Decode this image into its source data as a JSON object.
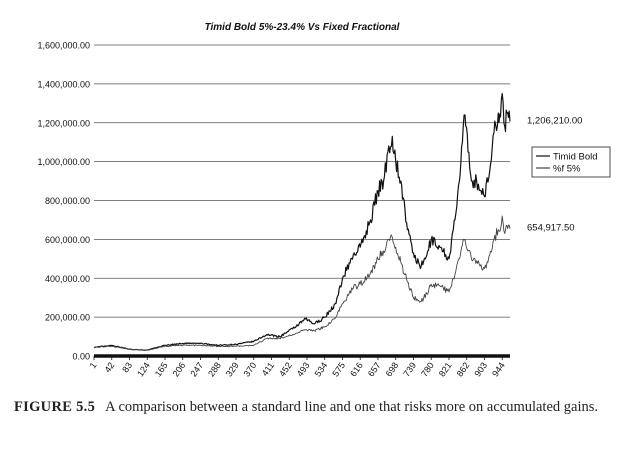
{
  "chart_data": {
    "type": "line",
    "title": "Timid Bold 5%-23.4% Vs Fixed Fractional",
    "xlabel": "",
    "ylabel": "",
    "ylim": [
      0,
      1600000
    ],
    "xlim": [
      1,
      962
    ],
    "yticks": [
      "0.00",
      "200,000.00",
      "400,000.00",
      "600,000.00",
      "800,000.00",
      "1,000,000.00",
      "1,200,000.00",
      "1,400,000.00",
      "1,600,000.00"
    ],
    "ytick_values": [
      0,
      200000,
      400000,
      600000,
      800000,
      1000000,
      1200000,
      1400000,
      1600000
    ],
    "xticks": [
      "1",
      "42",
      "83",
      "124",
      "165",
      "206",
      "247",
      "288",
      "329",
      "370",
      "411",
      "452",
      "493",
      "534",
      "575",
      "616",
      "657",
      "698",
      "739",
      "780",
      "821",
      "862",
      "903",
      "944"
    ],
    "xtick_values": [
      1,
      42,
      83,
      124,
      165,
      206,
      247,
      288,
      329,
      370,
      411,
      452,
      493,
      534,
      575,
      616,
      657,
      698,
      739,
      780,
      821,
      862,
      903,
      944
    ],
    "grid": "horizontal",
    "legend": "right",
    "series": [
      {
        "name": "Timid Bold",
        "color": "#111111",
        "x": [
          1,
          42,
          83,
          124,
          165,
          206,
          247,
          288,
          329,
          370,
          400,
          430,
          460,
          490,
          510,
          534,
          560,
          575,
          600,
          616,
          640,
          657,
          670,
          680,
          690,
          698,
          710,
          725,
          739,
          755,
          770,
          780,
          800,
          821,
          835,
          845,
          852,
          858,
          865,
          875,
          885,
          895,
          903,
          915,
          925,
          935,
          940,
          944,
          950,
          955,
          962
        ],
        "values": [
          45000,
          55000,
          35000,
          30000,
          55000,
          65000,
          65000,
          55000,
          60000,
          75000,
          110000,
          100000,
          140000,
          190000,
          165000,
          200000,
          270000,
          400000,
          520000,
          560000,
          700000,
          850000,
          900000,
          1050000,
          1130000,
          1000000,
          900000,
          650000,
          530000,
          450000,
          520000,
          600000,
          560000,
          500000,
          700000,
          900000,
          1100000,
          1240000,
          1050000,
          900000,
          900000,
          850000,
          820000,
          950000,
          1150000,
          1250000,
          1230000,
          1350000,
          1180000,
          1250000,
          1206210
        ]
      },
      {
        "name": "%f 5%",
        "color": "#444444",
        "x": [
          1,
          42,
          83,
          124,
          165,
          206,
          247,
          288,
          329,
          370,
          400,
          430,
          460,
          490,
          510,
          534,
          560,
          575,
          600,
          616,
          640,
          657,
          670,
          680,
          690,
          698,
          710,
          725,
          739,
          755,
          770,
          780,
          800,
          821,
          835,
          845,
          852,
          858,
          865,
          875,
          885,
          895,
          903,
          915,
          925,
          935,
          940,
          944,
          950,
          955,
          962
        ],
        "values": [
          45000,
          50000,
          35000,
          30000,
          50000,
          55000,
          55000,
          50000,
          50000,
          55000,
          90000,
          90000,
          110000,
          135000,
          130000,
          150000,
          200000,
          270000,
          350000,
          370000,
          430000,
          500000,
          540000,
          600000,
          610000,
          560000,
          480000,
          380000,
          300000,
          280000,
          320000,
          370000,
          360000,
          330000,
          420000,
          500000,
          570000,
          600000,
          540000,
          490000,
          490000,
          470000,
          450000,
          520000,
          600000,
          650000,
          650000,
          720000,
          630000,
          670000,
          654917.5
        ]
      }
    ],
    "annotations": [
      {
        "text": "1,206,210.00",
        "series": 0
      },
      {
        "text": "654,917.50",
        "series": 1
      }
    ]
  },
  "caption": {
    "figure_label": "FIGURE 5.5",
    "text": "A comparison between a standard line and one that risks more on accumulated gains."
  }
}
